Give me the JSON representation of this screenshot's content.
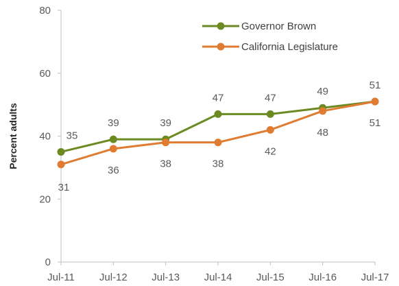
{
  "chart_data": {
    "type": "line",
    "title": "",
    "xlabel": "",
    "ylabel": "Percent adults",
    "ylim": [
      0,
      80
    ],
    "yticks": [
      "0",
      "20",
      "40",
      "60",
      "80"
    ],
    "grid": false,
    "legend_position": "top-right",
    "categories": [
      "Jul-11",
      "Jul-12",
      "Jul-13",
      "Jul-14",
      "Jul-15",
      "Jul-16",
      "Jul-17"
    ],
    "series": [
      {
        "name": "Governor Brown",
        "color": "#6b8a22",
        "values": [
          35,
          39,
          39,
          47,
          47,
          49,
          51
        ],
        "labels": [
          "35",
          "39",
          "39",
          "47",
          "47",
          "49",
          "51"
        ],
        "label_position": "above"
      },
      {
        "name": "California Legislature",
        "color": "#e07b32",
        "values": [
          31,
          36,
          38,
          38,
          42,
          48,
          51
        ],
        "labels": [
          "31",
          "36",
          "38",
          "38",
          "42",
          "48",
          "51"
        ],
        "label_position": "below"
      }
    ]
  }
}
